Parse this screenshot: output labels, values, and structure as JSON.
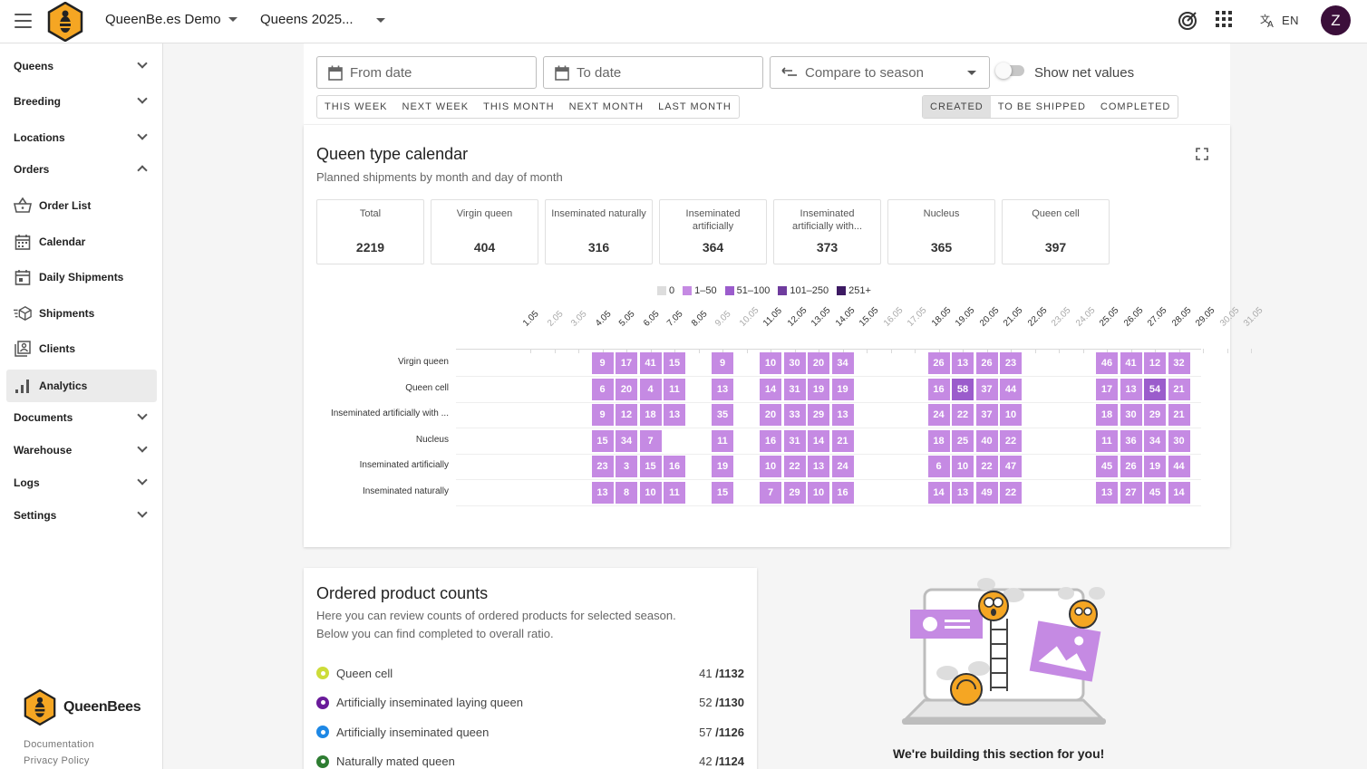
{
  "header": {
    "organization": "QueenBe.es Demo",
    "season": "Queens 2025...",
    "language": "EN",
    "avatar_initial": "Z"
  },
  "sidebar": {
    "groups": [
      {
        "label": "Queens",
        "expanded": false
      },
      {
        "label": "Breeding",
        "expanded": false
      },
      {
        "label": "Locations",
        "expanded": false
      },
      {
        "label": "Orders",
        "expanded": true
      },
      {
        "label": "Documents",
        "expanded": false
      },
      {
        "label": "Warehouse",
        "expanded": false
      },
      {
        "label": "Logs",
        "expanded": false
      },
      {
        "label": "Settings",
        "expanded": false
      }
    ],
    "order_items": [
      {
        "label": "Order List",
        "icon": "basket-icon"
      },
      {
        "label": "Calendar",
        "icon": "calendar-icon"
      },
      {
        "label": "Daily Shipments",
        "icon": "calendar-day-icon"
      },
      {
        "label": "Shipments",
        "icon": "shipment-box-icon"
      },
      {
        "label": "Clients",
        "icon": "clients-icon"
      },
      {
        "label": "Analytics",
        "icon": "analytics-icon",
        "active": true
      }
    ],
    "brand": "QueenBees",
    "links": [
      "Documentation",
      "Privacy Policy"
    ]
  },
  "filters": {
    "from_placeholder": "From date",
    "to_placeholder": "To date",
    "compare_label": "Compare to season",
    "net_toggle_label": "Show net values",
    "net_toggle_on": false,
    "periods": [
      "THIS WEEK",
      "NEXT WEEK",
      "THIS MONTH",
      "NEXT MONTH",
      "LAST MONTH"
    ],
    "statuses": [
      "CREATED",
      "TO BE SHIPPED",
      "COMPLETED"
    ],
    "selected_status": "CREATED"
  },
  "calendar": {
    "title": "Queen type calendar",
    "subtitle": "Planned shipments by month and day of month",
    "stats": [
      {
        "label": "Total",
        "value": "2219"
      },
      {
        "label": "Virgin queen",
        "value": "404"
      },
      {
        "label": "Inseminated naturally",
        "value": "316"
      },
      {
        "label": "Inseminated artificially",
        "value": "364"
      },
      {
        "label": "Inseminated artificially with...",
        "value": "373"
      },
      {
        "label": "Nucleus",
        "value": "365"
      },
      {
        "label": "Queen cell",
        "value": "397"
      }
    ],
    "legend": [
      {
        "label": "0",
        "color": "#dddddd"
      },
      {
        "label": "1–50",
        "color": "#c58ae3"
      },
      {
        "label": "51–100",
        "color": "#9b5ccc"
      },
      {
        "label": "101–250",
        "color": "#6f3c9e"
      },
      {
        "label": "251+",
        "color": "#3d1a63"
      }
    ]
  },
  "chart_data": {
    "type": "heatmap",
    "x": [
      "1.05",
      "2.05",
      "3.05",
      "4.05",
      "5.05",
      "6.05",
      "7.05",
      "8.05",
      "9.05",
      "10.05",
      "11.05",
      "12.05",
      "13.05",
      "14.05",
      "15.05",
      "16.05",
      "17.05",
      "18.05",
      "19.05",
      "20.05",
      "21.05",
      "22.05",
      "23.05",
      "24.05",
      "25.05",
      "26.05",
      "27.05",
      "28.05",
      "29.05",
      "30.05",
      "31.05"
    ],
    "x_muted": [
      "2.05",
      "3.05",
      "9.05",
      "10.05",
      "16.05",
      "17.05",
      "23.05",
      "24.05",
      "30.05",
      "31.05"
    ],
    "rows": [
      {
        "name": "Virgin queen",
        "values": {
          "4.05": 9,
          "5.05": 17,
          "6.05": 41,
          "7.05": 15,
          "9.05": 9,
          "11.05": 10,
          "12.05": 30,
          "13.05": 20,
          "14.05": 34,
          "18.05": 26,
          "19.05": 13,
          "20.05": 26,
          "21.05": 23,
          "25.05": 46,
          "26.05": 41,
          "27.05": 12,
          "28.05": 32
        }
      },
      {
        "name": "Queen cell",
        "values": {
          "4.05": 6,
          "5.05": 20,
          "6.05": 4,
          "7.05": 11,
          "9.05": 13,
          "11.05": 14,
          "12.05": 31,
          "13.05": 19,
          "14.05": 19,
          "18.05": 16,
          "19.05": 58,
          "20.05": 37,
          "21.05": 44,
          "25.05": 17,
          "26.05": 13,
          "27.05": 54,
          "28.05": 21
        }
      },
      {
        "name": "Inseminated artificially with ...",
        "values": {
          "4.05": 9,
          "5.05": 12,
          "6.05": 18,
          "7.05": 13,
          "9.05": 35,
          "11.05": 20,
          "12.05": 33,
          "13.05": 29,
          "14.05": 13,
          "18.05": 24,
          "19.05": 22,
          "20.05": 37,
          "21.05": 10,
          "25.05": 18,
          "26.05": 30,
          "27.05": 29,
          "28.05": 21
        }
      },
      {
        "name": "Nucleus",
        "values": {
          "4.05": 15,
          "5.05": 34,
          "6.05": 7,
          "9.05": 11,
          "11.05": 16,
          "12.05": 31,
          "13.05": 14,
          "14.05": 21,
          "18.05": 18,
          "19.05": 25,
          "20.05": 40,
          "21.05": 22,
          "25.05": 11,
          "26.05": 36,
          "27.05": 34,
          "28.05": 30
        }
      },
      {
        "name": "Inseminated artificially",
        "values": {
          "4.05": 23,
          "5.05": 3,
          "6.05": 15,
          "7.05": 16,
          "9.05": 19,
          "11.05": 10,
          "12.05": 22,
          "13.05": 13,
          "14.05": 24,
          "18.05": 6,
          "19.05": 10,
          "20.05": 22,
          "21.05": 47,
          "25.05": 45,
          "26.05": 26,
          "27.05": 19,
          "28.05": 44
        }
      },
      {
        "name": "Inseminated naturally",
        "values": {
          "4.05": 13,
          "5.05": 8,
          "6.05": 10,
          "7.05": 11,
          "9.05": 15,
          "11.05": 7,
          "12.05": 29,
          "13.05": 10,
          "14.05": 16,
          "18.05": 14,
          "19.05": 13,
          "20.05": 49,
          "21.05": 22,
          "25.05": 13,
          "26.05": 27,
          "27.05": 45,
          "28.05": 14
        }
      }
    ]
  },
  "products": {
    "title": "Ordered product counts",
    "description_1": "Here you can review counts of ordered products for selected season.",
    "description_2": "Below you can find completed to overall ratio.",
    "items": [
      {
        "label": "Queen cell",
        "completed": "41",
        "total": "/1132",
        "color": "#cddc39"
      },
      {
        "label": "Artificially inseminated laying queen",
        "completed": "52",
        "total": "/1130",
        "color": "#6a1b9a"
      },
      {
        "label": "Artificially inseminated queen",
        "completed": "57",
        "total": "/1126",
        "color": "#1e88e5"
      },
      {
        "label": "Naturally mated queen",
        "completed": "42",
        "total": "/1124",
        "color": "#2e7d32"
      }
    ]
  },
  "building_message": "We're building this section for you!"
}
